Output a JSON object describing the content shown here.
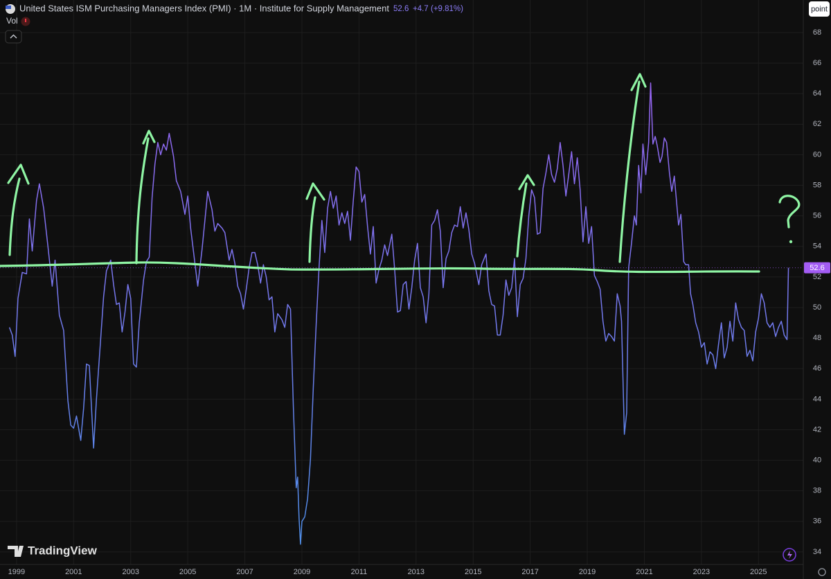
{
  "chart_data": {
    "type": "line",
    "title": "United States ISM Purchasing Managers Index (PMI) · 1M · Institute for Supply Management",
    "change_label": "+4.7",
    "change_pct_label": "(+9.81%)",
    "volume_label": "Vol",
    "scale_button": "point",
    "brand": "TradingView",
    "xlim": [
      1998.42,
      2026.57
    ],
    "ylim": [
      33.18,
      70.13
    ],
    "xticks": [
      1999,
      2001,
      2003,
      2005,
      2007,
      2009,
      2011,
      2013,
      2015,
      2017,
      2019,
      2021,
      2023,
      2025
    ],
    "yticks": [
      34,
      36,
      38,
      40,
      42,
      44,
      46,
      48,
      50,
      52,
      54,
      56,
      58,
      60,
      62,
      64,
      66,
      68
    ],
    "grid": true,
    "x": [
      1998.75,
      1998.85,
      1998.95,
      1999.05,
      1999.2,
      1999.35,
      1999.45,
      1999.55,
      1999.7,
      1999.8,
      1999.95,
      2000.1,
      2000.25,
      2000.35,
      2000.5,
      2000.65,
      2000.8,
      2000.9,
      2001.0,
      2001.1,
      2001.25,
      2001.35,
      2001.45,
      2001.55,
      2001.7,
      2001.8,
      2001.95,
      2002.05,
      2002.15,
      2002.3,
      2002.4,
      2002.5,
      2002.6,
      2002.7,
      2002.8,
      2002.9,
      2003.0,
      2003.1,
      2003.2,
      2003.3,
      2003.45,
      2003.55,
      2003.65,
      2003.75,
      2003.85,
      2003.95,
      2004.05,
      2004.15,
      2004.25,
      2004.35,
      2004.5,
      2004.6,
      2004.75,
      2004.9,
      2005.0,
      2005.1,
      2005.25,
      2005.35,
      2005.5,
      2005.6,
      2005.7,
      2005.85,
      2005.95,
      2006.05,
      2006.2,
      2006.3,
      2006.45,
      2006.55,
      2006.65,
      2006.75,
      2006.85,
      2006.95,
      2007.05,
      2007.15,
      2007.25,
      2007.35,
      2007.45,
      2007.55,
      2007.65,
      2007.75,
      2007.85,
      2007.95,
      2008.05,
      2008.15,
      2008.3,
      2008.4,
      2008.5,
      2008.6,
      2008.7,
      2008.8,
      2008.85,
      2008.9,
      2008.95,
      2009.0,
      2009.1,
      2009.2,
      2009.3,
      2009.4,
      2009.5,
      2009.6,
      2009.7,
      2009.8,
      2009.9,
      2010.0,
      2010.1,
      2010.2,
      2010.3,
      2010.4,
      2010.5,
      2010.6,
      2010.7,
      2010.8,
      2010.9,
      2011.0,
      2011.1,
      2011.2,
      2011.3,
      2011.4,
      2011.5,
      2011.6,
      2011.7,
      2011.8,
      2011.9,
      2012.0,
      2012.15,
      2012.25,
      2012.35,
      2012.45,
      2012.55,
      2012.65,
      2012.75,
      2012.85,
      2012.95,
      2013.05,
      2013.15,
      2013.25,
      2013.35,
      2013.45,
      2013.55,
      2013.65,
      2013.75,
      2013.85,
      2013.95,
      2014.05,
      2014.15,
      2014.25,
      2014.35,
      2014.45,
      2014.55,
      2014.65,
      2014.75,
      2014.85,
      2014.95,
      2015.05,
      2015.2,
      2015.3,
      2015.45,
      2015.55,
      2015.65,
      2015.75,
      2015.85,
      2015.95,
      2016.05,
      2016.15,
      2016.25,
      2016.35,
      2016.45,
      2016.55,
      2016.65,
      2016.75,
      2016.85,
      2016.95,
      2017.05,
      2017.15,
      2017.25,
      2017.35,
      2017.45,
      2017.55,
      2017.65,
      2017.75,
      2017.85,
      2017.95,
      2018.05,
      2018.15,
      2018.25,
      2018.35,
      2018.45,
      2018.55,
      2018.65,
      2018.75,
      2018.85,
      2018.95,
      2019.05,
      2019.15,
      2019.25,
      2019.35,
      2019.45,
      2019.55,
      2019.65,
      2019.75,
      2019.85,
      2019.95,
      2020.05,
      2020.15,
      2020.2,
      2020.3,
      2020.38,
      2020.45,
      2020.55,
      2020.65,
      2020.72,
      2020.8,
      2020.88,
      2020.95,
      2021.05,
      2021.15,
      2021.22,
      2021.3,
      2021.38,
      2021.45,
      2021.55,
      2021.62,
      2021.7,
      2021.78,
      2021.88,
      2021.96,
      2022.05,
      2022.12,
      2022.2,
      2022.28,
      2022.38,
      2022.45,
      2022.55,
      2022.62,
      2022.7,
      2022.8,
      2022.9,
      2023.0,
      2023.1,
      2023.2,
      2023.3,
      2023.4,
      2023.5,
      2023.6,
      2023.7,
      2023.8,
      2023.9,
      2024.0,
      2024.1,
      2024.2,
      2024.3,
      2024.4,
      2024.5,
      2024.6,
      2024.7,
      2024.8,
      2024.9,
      2025.0,
      2025.1,
      2025.2,
      2025.3,
      2025.4,
      2025.5,
      2025.6,
      2025.7,
      2025.8,
      2025.9,
      2026.0,
      2026.05
    ],
    "series": [
      {
        "gradient": [
          "#a35cf3",
          "#4c8fe6"
        ],
        "values": [
          48.7,
          48.2,
          46.8,
          50.6,
          52.3,
          52.2,
          55.8,
          53.7,
          57.0,
          58.1,
          56.5,
          54.0,
          51.4,
          53.1,
          49.5,
          48.5,
          43.9,
          42.3,
          42.1,
          42.9,
          41.3,
          43.4,
          46.3,
          46.2,
          40.8,
          44.0,
          48.0,
          50.7,
          52.4,
          53.1,
          51.5,
          50.2,
          50.3,
          48.4,
          49.7,
          51.5,
          50.6,
          46.3,
          46.1,
          49.0,
          51.8,
          53.0,
          53.3,
          57.2,
          59.4,
          60.8,
          60.0,
          60.7,
          60.3,
          61.4,
          59.9,
          58.3,
          57.6,
          56.1,
          57.3,
          55.2,
          52.9,
          51.4,
          53.8,
          55.7,
          57.6,
          56.4,
          55.0,
          55.5,
          55.2,
          54.9,
          53.1,
          53.8,
          52.9,
          51.4,
          50.9,
          49.9,
          51.2,
          52.6,
          53.6,
          53.6,
          52.8,
          51.6,
          52.8,
          52.0,
          50.5,
          50.7,
          48.4,
          49.6,
          49.2,
          48.7,
          50.2,
          49.9,
          43.5,
          38.2,
          38.9,
          36.2,
          34.5,
          36.0,
          36.3,
          37.5,
          40.1,
          44.8,
          48.9,
          52.6,
          55.7,
          53.6,
          56.5,
          57.6,
          56.5,
          57.3,
          55.4,
          56.2,
          55.5,
          56.3,
          54.4,
          57.0,
          59.2,
          58.9,
          56.9,
          57.4,
          55.3,
          53.5,
          55.3,
          51.6,
          52.5,
          53.1,
          54.1,
          53.4,
          54.8,
          52.5,
          49.7,
          49.8,
          51.5,
          51.7,
          49.9,
          51.3,
          53.1,
          54.2,
          51.3,
          50.7,
          49.0,
          50.9,
          55.4,
          55.7,
          56.4,
          55.0,
          51.3,
          53.2,
          53.7,
          54.9,
          55.4,
          55.3,
          56.6,
          55.2,
          56.2,
          55.1,
          53.5,
          52.9,
          51.5,
          52.8,
          53.5,
          51.1,
          50.2,
          50.1,
          48.2,
          48.2,
          49.5,
          51.8,
          50.8,
          51.3,
          53.2,
          49.4,
          51.5,
          51.9,
          53.2,
          56.0,
          57.7,
          57.2,
          54.8,
          54.9,
          57.8,
          58.8,
          60.0,
          58.7,
          58.2,
          59.1,
          60.8,
          59.3,
          57.3,
          58.7,
          60.2,
          58.1,
          59.8,
          57.7,
          54.3,
          56.6,
          54.2,
          55.3,
          52.1,
          51.7,
          51.2,
          49.1,
          47.8,
          48.3,
          48.1,
          47.8,
          50.9,
          50.1,
          49.1,
          41.7,
          43.1,
          52.6,
          54.2,
          56.0,
          55.4,
          59.3,
          57.5,
          60.7,
          58.7,
          60.8,
          64.7,
          60.7,
          61.2,
          60.6,
          59.5,
          59.9,
          61.1,
          60.8,
          58.8,
          57.6,
          58.6,
          57.1,
          55.4,
          56.1,
          53.0,
          52.8,
          52.8,
          50.9,
          50.2,
          49.0,
          48.4,
          47.4,
          47.7,
          46.3,
          47.1,
          46.9,
          46.0,
          47.6,
          49.0,
          46.7,
          47.4,
          49.1,
          47.8,
          50.3,
          49.2,
          48.7,
          48.5,
          46.8,
          47.2,
          46.5,
          48.4,
          49.3,
          50.9,
          50.3,
          49.0,
          48.7,
          49.0,
          48.1,
          48.7,
          49.1,
          48.2,
          47.9,
          52.6
        ]
      }
    ]
  }
}
